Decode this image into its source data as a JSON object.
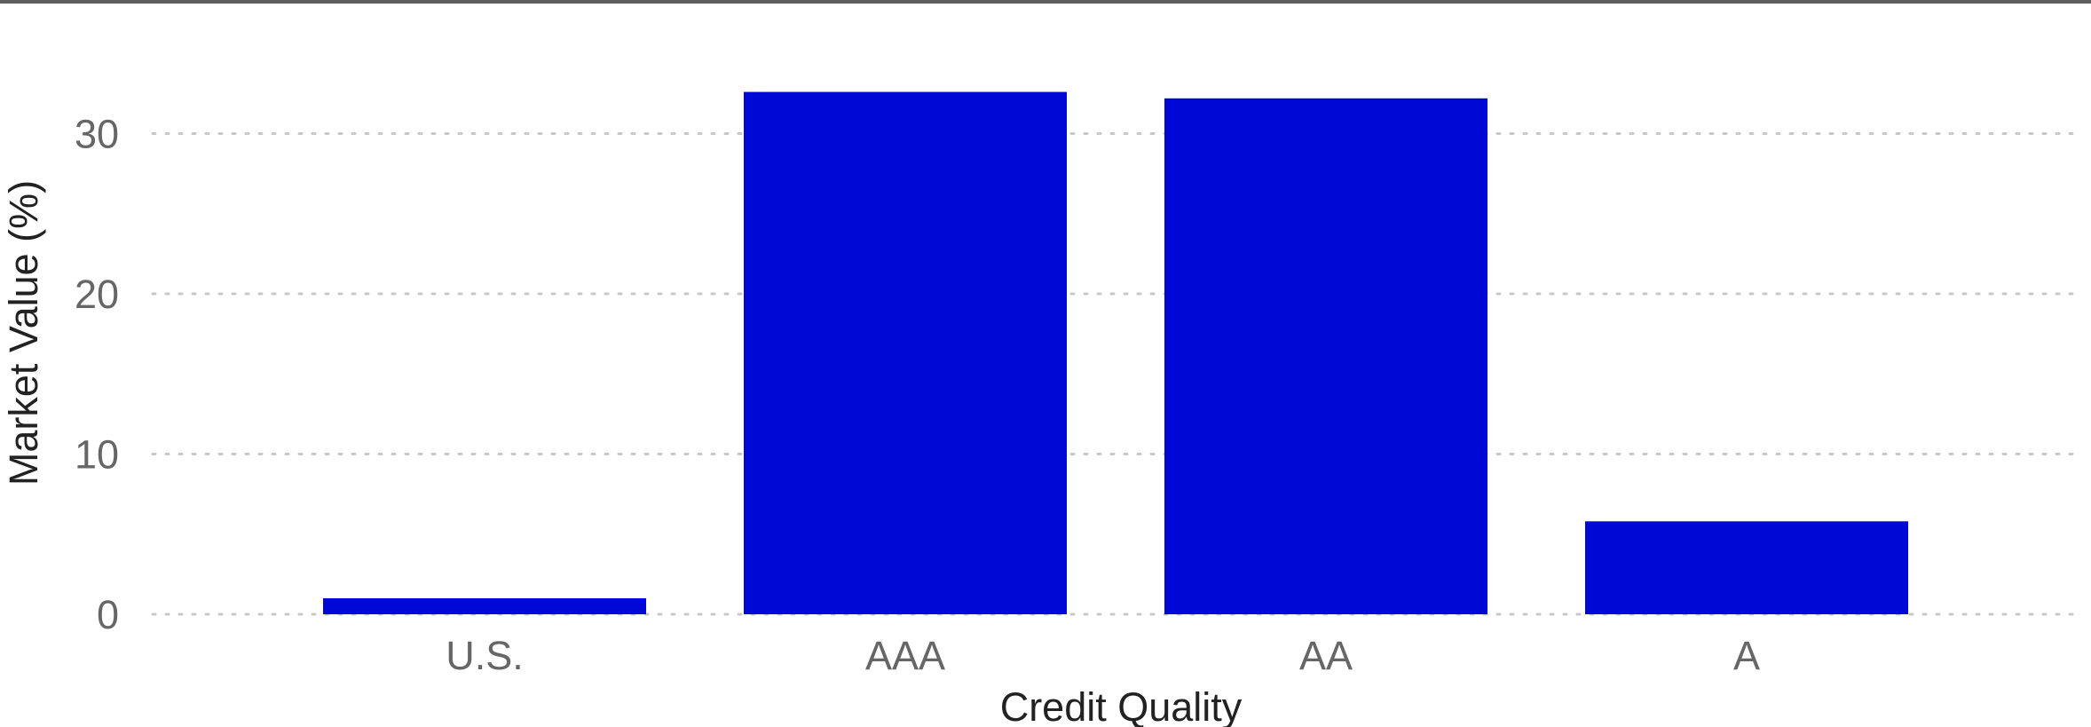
{
  "chart_data": {
    "type": "bar",
    "categories": [
      "U.S.",
      "AAA",
      "AA",
      "A"
    ],
    "values": [
      1.0,
      32.6,
      32.2,
      5.8
    ],
    "xlabel": "Credit Quality",
    "ylabel": "Market Value (%)",
    "ylim": [
      0,
      35
    ],
    "yticks": [
      0,
      10,
      20,
      30
    ],
    "grid": "horizontal dotted",
    "bar_color": "#0008d6"
  }
}
